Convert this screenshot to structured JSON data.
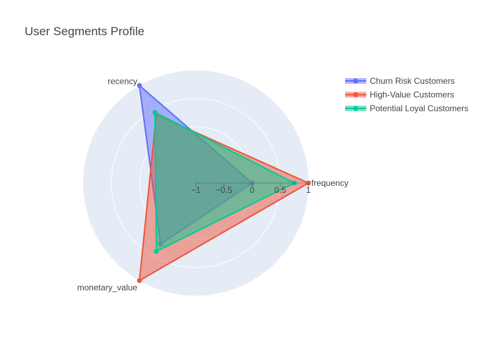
{
  "chart_data": {
    "type": "radar",
    "title": "User Segments Profile",
    "axes": [
      "recency",
      "frequency",
      "monetary_value"
    ],
    "radial_range": [
      -1,
      1
    ],
    "radial_ticks": [
      -1,
      -0.5,
      0,
      0.5,
      1
    ],
    "radial_tick_labels": [
      "−1",
      "−0.5",
      "0",
      "0.5",
      "1"
    ],
    "legend_position": "top-right",
    "series": [
      {
        "name": "Churn Risk Customers",
        "color": "#636efa",
        "values": [
          1.0,
          0.0,
          0.25
        ]
      },
      {
        "name": "High-Value Customers",
        "color": "#ef553b",
        "values": [
          0.4,
          1.0,
          1.0
        ]
      },
      {
        "name": "Potential Loyal Customers",
        "color": "#00cc96",
        "values": [
          0.45,
          0.75,
          0.4
        ]
      }
    ]
  }
}
